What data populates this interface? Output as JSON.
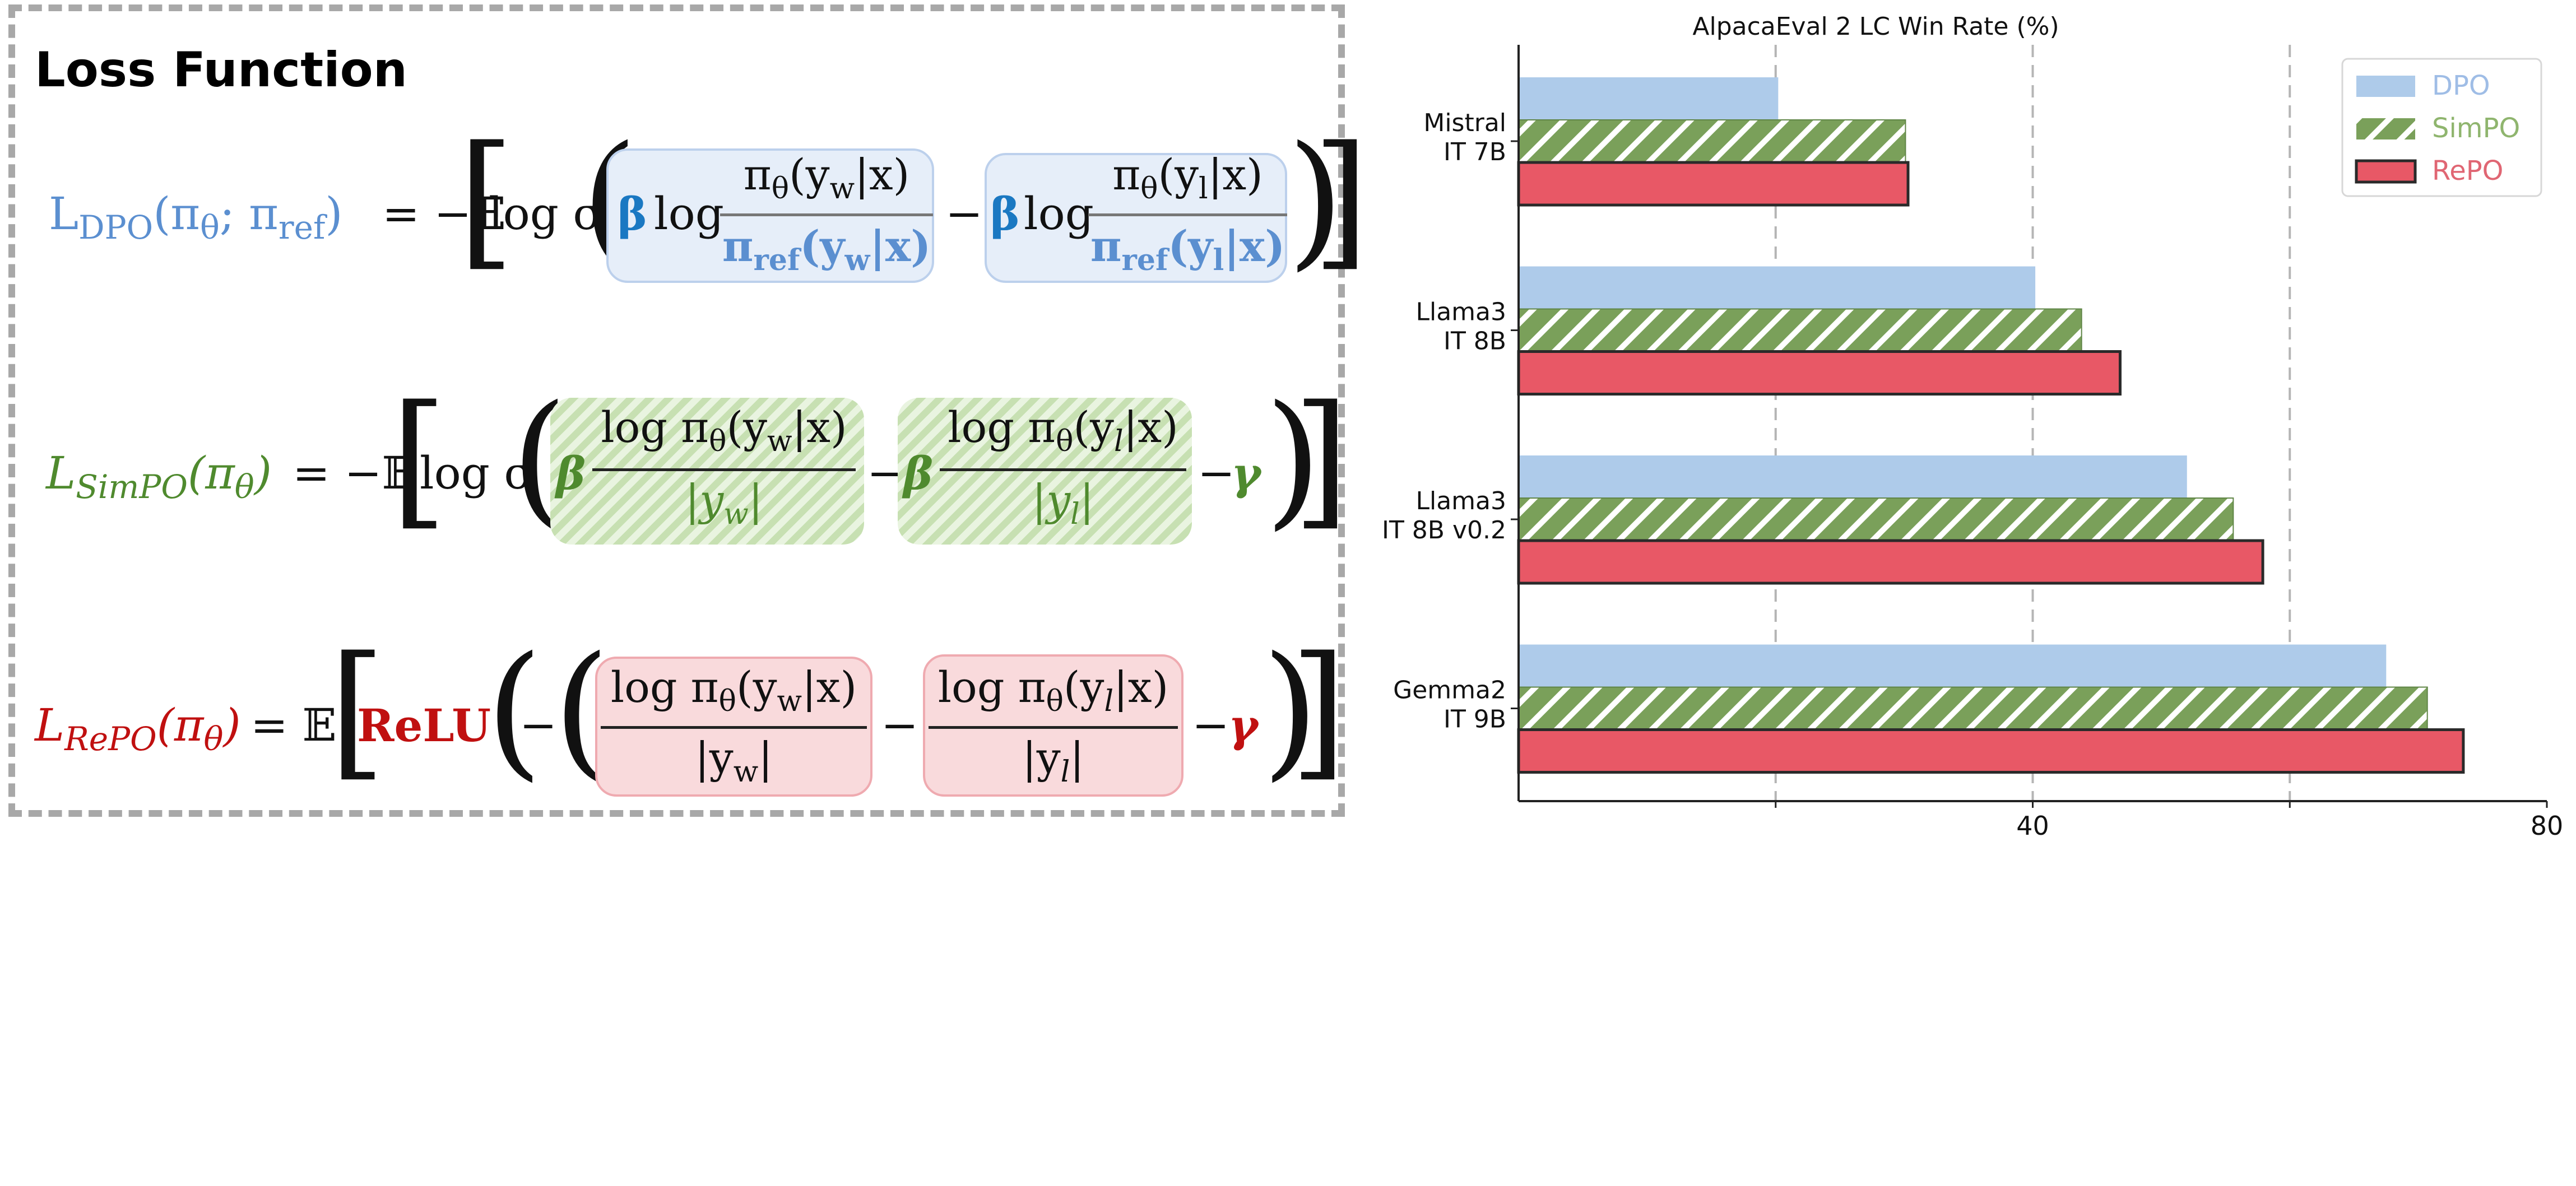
{
  "loss_panel": {
    "title": "Loss Function",
    "dpo": {
      "lhs_main": "L",
      "lhs_sub": "DPO",
      "lhs_args": "(π",
      "lhs_theta": "θ",
      "lhs_sep": "; π",
      "lhs_ref": "ref",
      "lhs_close": ")",
      "equals": "= −𝔼",
      "log_sigma": "log σ",
      "beta": "β",
      "log": "log",
      "num_w": "π",
      "num_w_theta": "θ",
      "num_w_arg": "(y",
      "num_w_sub": "w",
      "num_w_tail": "|x)",
      "den_w": "π",
      "den_w_ref": "ref",
      "den_w_arg": "(y",
      "den_w_sub": "w",
      "den_w_tail": "|x)",
      "minus": "−",
      "num_l": "π",
      "num_l_theta": "θ",
      "num_l_arg": "(y",
      "num_l_sub": "l",
      "num_l_tail": "|x)",
      "den_l": "π",
      "den_l_ref": "ref",
      "den_l_arg": "(y",
      "den_l_sub": "l",
      "den_l_tail": "|x)"
    },
    "simpo": {
      "lhs_main": "L",
      "lhs_sub": "SimPO",
      "lhs_args": "(π",
      "lhs_theta": "θ",
      "lhs_close": ")",
      "equals": "= −𝔼",
      "log_sigma": "log σ",
      "beta": "β",
      "num_w": "log π",
      "num_w_theta": "θ",
      "num_w_arg": "(y",
      "num_w_sub": "w",
      "num_w_tail": "|x)",
      "den_w": "|y",
      "den_w_sub": "w",
      "den_w_tail": "|",
      "minus": "−",
      "num_l": "log π",
      "num_l_theta": "θ",
      "num_l_arg": "(y",
      "num_l_sub": "l",
      "num_l_tail": "|x)",
      "den_l": "|y",
      "den_l_sub": "l",
      "den_l_tail": "|",
      "gamma": "γ"
    },
    "repo": {
      "lhs_main": "L",
      "lhs_sub": "RePO",
      "lhs_args": "(π",
      "lhs_theta": "θ",
      "lhs_close": ")",
      "equals": "= 𝔼",
      "relu": "ReLU",
      "neg": "−",
      "num_w": "log π",
      "num_w_theta": "θ",
      "num_w_arg": "(y",
      "num_w_sub": "w",
      "num_w_tail": "|x)",
      "den_w": "|y",
      "den_w_sub": "w",
      "den_w_tail": "|",
      "minus": "−",
      "num_l": "log π",
      "num_l_theta": "θ",
      "num_l_arg": "(y",
      "num_l_sub": "l",
      "num_l_tail": "|x)",
      "den_l": "|y",
      "den_l_sub": "l",
      "den_l_tail": "|",
      "gamma": "γ"
    }
  },
  "colors": {
    "dpo": "#aecbea",
    "simpo": "#7aa05a",
    "repo": "#e85866",
    "dpo_text": "#5b8fd0",
    "simpo_text": "#4f8a2e",
    "repo_text": "#c01010",
    "legend_dpo_text": "#9fbde6",
    "legend_simpo_text": "#8fb56e",
    "legend_repo_text": "#e06673",
    "grid": "#b5b5b5"
  },
  "chart_data": {
    "type": "bar",
    "orientation": "horizontal",
    "title": "AlpacaEval 2 LC Win Rate (%)",
    "categories": [
      [
        "Mistral",
        "IT 7B"
      ],
      [
        "Llama3",
        "IT 8B"
      ],
      [
        "Llama3",
        "IT 8B v0.2"
      ],
      [
        "Gemma2",
        "IT 9B"
      ]
    ],
    "series": [
      {
        "name": "DPO",
        "values": [
          20.2,
          40.2,
          52.0,
          67.5
        ],
        "pattern": "solid"
      },
      {
        "name": "SimPO",
        "values": [
          30.1,
          43.8,
          55.6,
          70.7
        ],
        "pattern": "hatch"
      },
      {
        "name": "RePO",
        "values": [
          30.3,
          46.8,
          57.9,
          73.5
        ],
        "pattern": "outlined"
      }
    ],
    "xlim": [
      0,
      80
    ],
    "xticks": [
      40,
      80
    ],
    "xtick_labels": [
      "40",
      "80"
    ],
    "grid": "vertical dashed at 20, 40, 60",
    "legend": "top-right"
  }
}
